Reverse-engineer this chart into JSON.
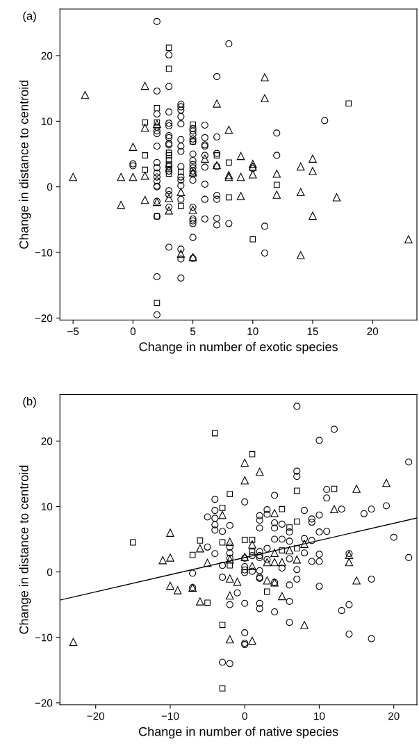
{
  "chart_data": [
    {
      "type": "scatter",
      "annotations": [
        "(a)"
      ],
      "xlabel": "Change in number of exotic species",
      "ylabel": "Change in distance to centroid",
      "xlim": [
        -6.1,
        23.7
      ],
      "ylim": [
        -20.3,
        27.1
      ],
      "xticks": [
        -5,
        0,
        5,
        10,
        15,
        20
      ],
      "yticks": [
        -20,
        -10,
        0,
        10,
        20
      ],
      "grid": false,
      "legend": false,
      "series": [
        {
          "marker": "circle",
          "color": "#000000",
          "x": [
            0,
            0,
            2,
            2,
            2,
            2,
            2,
            2,
            2,
            2,
            2,
            2,
            2,
            2,
            2,
            2,
            2,
            2,
            2,
            2,
            3,
            3,
            3,
            3,
            3,
            3,
            3,
            3,
            3,
            3,
            3,
            3,
            3,
            3,
            3,
            4,
            4,
            4,
            4,
            4,
            4,
            4,
            4,
            4,
            4,
            4,
            4,
            4,
            4,
            4,
            4,
            5,
            5,
            5,
            5,
            5,
            5,
            5,
            5,
            5,
            5,
            5,
            5,
            5,
            5,
            5,
            5,
            5,
            5,
            6,
            6,
            6,
            6,
            6,
            6,
            6,
            6,
            6,
            7,
            7,
            7,
            7,
            7,
            7,
            7,
            7,
            8,
            8,
            10,
            11,
            11,
            12,
            12,
            16
          ],
          "values": [
            3.5,
            3.2,
            25.2,
            14.6,
            11.1,
            9.1,
            8.5,
            8.1,
            6.2,
            3.7,
            2.9,
            2.1,
            1.5,
            0.9,
            0.1,
            0,
            -2.2,
            -4.5,
            -13.7,
            -19.5,
            20.1,
            15.3,
            11.4,
            9.7,
            9.3,
            7.8,
            7.5,
            6.6,
            6.4,
            3.1,
            2.4,
            -0.6,
            -1.2,
            -3.1,
            -9.2,
            12.6,
            12.2,
            11.7,
            10.7,
            9.6,
            7.2,
            6.2,
            5.4,
            3.1,
            1.5,
            1.0,
            0.2,
            -1.9,
            -9.5,
            -11.0,
            -13.9,
            8.9,
            8.5,
            8.0,
            7.3,
            6.9,
            5.0,
            4.0,
            3.4,
            2.9,
            2.4,
            2.0,
            1.0,
            -3.1,
            -4.9,
            -5.2,
            -5.6,
            -7.7,
            -10.9,
            9.4,
            7.5,
            6.4,
            6.2,
            4.8,
            3.0,
            0.4,
            -1.9,
            -4.9,
            16.8,
            7.6,
            5.1,
            3.1,
            -1.3,
            -1.9,
            -4.8,
            -5.8,
            21.8,
            -5.6,
            2.8,
            -6.0,
            -10.1,
            8.2,
            4.8,
            10.1
          ]
        },
        {
          "marker": "square",
          "color": "#000000",
          "x": [
            1,
            1,
            1,
            2,
            2,
            2,
            2,
            3,
            3,
            3,
            3,
            3,
            3,
            3,
            3,
            4,
            4,
            5,
            5,
            7,
            8,
            8,
            10,
            12,
            18
          ],
          "values": [
            9.8,
            4.8,
            2.6,
            12.0,
            9.8,
            -4.5,
            -17.7,
            21.2,
            18.0,
            5.2,
            4.8,
            4.1,
            3.4,
            2.7,
            2.0,
            2.3,
            -2.9,
            9.5,
            6.9,
            4.8,
            3.7,
            -1.6,
            -8.0,
            0.3,
            12.7
          ]
        },
        {
          "marker": "triangle",
          "color": "#000000",
          "x": [
            -5,
            -4,
            -1,
            -1,
            0,
            0,
            1,
            1,
            1,
            1,
            2,
            2,
            3,
            3,
            4,
            4,
            5,
            5,
            5,
            6,
            7,
            7,
            8,
            8,
            8,
            9,
            9,
            9,
            10,
            10,
            10,
            11,
            11,
            12,
            12,
            14,
            14,
            14,
            15,
            15,
            15,
            17,
            23
          ],
          "values": [
            1.5,
            14.0,
            1.5,
            -2.75,
            6.1,
            1.5,
            15.4,
            9.0,
            1.7,
            -2.0,
            9.6,
            -2.3,
            -1.7,
            -3.6,
            -0.8,
            -10.2,
            2.2,
            -3.5,
            -10.7,
            4.3,
            12.7,
            3.3,
            8.7,
            1.8,
            1.5,
            4.7,
            1.5,
            -1.4,
            3.5,
            3.1,
            1.9,
            16.7,
            13.5,
            2.0,
            -1.2,
            3.1,
            -0.8,
            -10.4,
            4.3,
            2.4,
            -4.4,
            -1.6,
            -8.0
          ]
        }
      ]
    },
    {
      "type": "scatter",
      "annotations": [
        "(b)"
      ],
      "xlabel": "Change in number of native species",
      "ylabel": "Change in distance to centroid",
      "xlim": [
        -24.8,
        23.1
      ],
      "ylim": [
        -20.3,
        27.1
      ],
      "xticks": [
        -20,
        -10,
        0,
        10,
        20
      ],
      "yticks": [
        -20,
        -10,
        0,
        10,
        20
      ],
      "grid": false,
      "legend": false,
      "series": [
        {
          "marker": "circle",
          "color": "#000000",
          "x": [
            -7,
            -7,
            -5,
            -5,
            -4,
            -4,
            -4,
            -4,
            -4,
            -4,
            -3,
            -3,
            -3,
            -3,
            -2,
            -2,
            -2,
            -2,
            -2,
            -2,
            -1,
            0,
            0,
            0,
            0,
            0,
            0,
            0,
            0,
            0,
            1,
            1,
            2,
            2,
            2,
            2,
            2,
            2,
            2,
            2,
            2,
            2,
            2,
            3,
            3,
            3,
            3,
            4,
            4,
            4,
            4,
            4,
            4,
            5,
            5,
            5,
            6,
            6,
            6,
            6,
            6,
            6,
            7,
            7,
            7,
            7,
            7,
            8,
            8,
            8,
            9,
            9,
            9,
            9,
            10,
            10,
            10,
            10,
            10,
            10,
            11,
            11,
            11,
            12,
            13,
            13,
            14,
            14,
            14,
            16,
            17,
            17,
            17,
            19,
            20,
            22,
            22
          ],
          "values": [
            -0.2,
            -2.4,
            3.8,
            8.4,
            11.1,
            9.4,
            8.2,
            7.2,
            6.4,
            2.8,
            6.2,
            1.0,
            -0.8,
            -13.8,
            7.1,
            3.8,
            2.9,
            2.1,
            -5.0,
            -14.0,
            -3.2,
            10.7,
            2.1,
            0.8,
            0.3,
            -0.1,
            -4.8,
            -9.3,
            -10.9,
            -11.1,
            2.5,
            0.1,
            8.6,
            7.9,
            6.7,
            3.1,
            2.5,
            2.2,
            0.2,
            -0.8,
            -1.0,
            -4.8,
            -5.6,
            9.5,
            8.8,
            3.6,
            1.9,
            11.7,
            7.5,
            6.7,
            5.0,
            -1.6,
            -6.1,
            7.3,
            5.0,
            0.6,
            6.1,
            4.7,
            2.0,
            -2.0,
            -4.5,
            -7.7,
            25.3,
            15.4,
            14.6,
            0.35,
            -1.1,
            9.4,
            5.1,
            2.9,
            8.1,
            7.6,
            4.8,
            1.6,
            20.1,
            8.7,
            6.1,
            2.7,
            1.6,
            -2.2,
            12.6,
            11.3,
            6.2,
            21.8,
            9.6,
            -5.9,
            2.8,
            -5.0,
            -9.5,
            8.9,
            9.6,
            -1.1,
            -10.2,
            10.1,
            5.3,
            16.8,
            2.2
          ]
        },
        {
          "marker": "square",
          "color": "#000000",
          "x": [
            -15,
            -7,
            -6,
            -5,
            -4,
            -3,
            -3,
            -3,
            -3,
            -2,
            -2,
            0,
            1,
            1,
            1,
            3,
            5,
            5,
            6,
            7,
            7,
            7,
            12
          ],
          "values": [
            4.5,
            2.6,
            4.8,
            -4.7,
            21.2,
            9.8,
            4.5,
            -8.1,
            -17.8,
            11.9,
            1.0,
            4.9,
            18.0,
            4.9,
            3.1,
            -3.0,
            9.6,
            3.3,
            6.8,
            12.4,
            7.7,
            3.6,
            12.7
          ]
        },
        {
          "marker": "triangle",
          "color": "#000000",
          "x": [
            -23,
            -11,
            -10,
            -10,
            -10,
            -9,
            -7,
            -6,
            -6,
            -5,
            -3,
            -2,
            -2,
            -2,
            -2,
            -2,
            -1,
            0,
            0,
            0,
            1,
            1,
            1,
            2,
            3,
            3,
            4,
            4,
            4,
            4,
            5,
            5,
            6,
            7,
            8,
            8,
            12,
            14,
            14,
            15,
            15,
            19
          ],
          "values": [
            -10.7,
            1.8,
            6.0,
            2.2,
            -2.1,
            -2.8,
            -2.4,
            3.6,
            -4.5,
            1.4,
            8.7,
            4.6,
            1.9,
            -1.0,
            -3.6,
            -10.3,
            -1.5,
            16.7,
            14.0,
            2.3,
            4.2,
            0.9,
            -10.5,
            15.3,
            1.5,
            -1.3,
            9.0,
            2.9,
            1.5,
            -1.6,
            1.5,
            -3.7,
            3.3,
            1.9,
            4.3,
            -8.1,
            9.6,
            2.6,
            1.5,
            12.7,
            -1.3,
            13.6
          ]
        },
        {
          "type": "line",
          "marker": "none",
          "color": "#000000",
          "x": [
            -24.8,
            23.1
          ],
          "values": [
            -4.3,
            8.25
          ]
        }
      ]
    }
  ]
}
